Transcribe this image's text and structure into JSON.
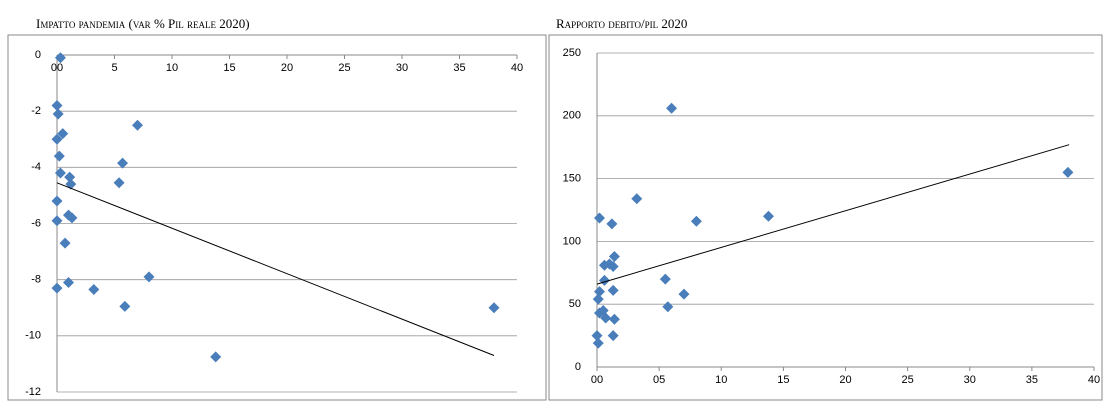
{
  "chart_data": [
    {
      "type": "scatter",
      "title": "Impatto pandemia (var % Pil reale 2020)",
      "color": "#4a7ebb",
      "grid": true,
      "x_axis_position": "top",
      "xlim": [
        0,
        40
      ],
      "xticks": [
        {
          "value": 0,
          "label": "00"
        },
        5,
        10,
        15,
        20,
        25,
        30,
        35,
        40
      ],
      "ylim": [
        -12,
        0
      ],
      "yticks": [
        -12,
        -10,
        -8,
        -6,
        -4,
        -2,
        0
      ],
      "x": [
        0.3,
        0.0,
        0.1,
        0.5,
        0.0,
        0.2,
        0.3,
        1.1,
        1.2,
        7.0,
        5.7,
        5.4,
        0.0,
        0.0,
        1.0,
        1.3,
        0.7,
        0.0,
        1.0,
        3.2,
        8.0,
        5.9,
        13.8,
        38.0
      ],
      "values": [
        -0.1,
        -1.8,
        -2.1,
        -2.8,
        -3.0,
        -3.6,
        -4.2,
        -4.35,
        -4.6,
        -2.5,
        -3.85,
        -4.55,
        -5.2,
        -5.9,
        -5.7,
        -5.8,
        -6.7,
        -8.3,
        -8.1,
        -8.35,
        -7.9,
        -8.95,
        -10.75,
        -9.0
      ],
      "trendline": {
        "x": [
          0,
          38
        ],
        "y": [
          -4.55,
          -10.7
        ]
      }
    },
    {
      "type": "scatter",
      "title": "Rapporto debito/pil 2020",
      "color": "#4a7ebb",
      "grid": true,
      "x_axis_position": "bottom",
      "xlim": [
        0,
        40
      ],
      "xticks": [
        {
          "value": 0,
          "label": "00"
        },
        {
          "value": 5,
          "label": "05"
        },
        10,
        15,
        20,
        25,
        30,
        35,
        40
      ],
      "ylim": [
        0,
        250
      ],
      "yticks": [
        0,
        50,
        100,
        150,
        200,
        250
      ],
      "x": [
        0.2,
        6.0,
        3.2,
        1.2,
        8.0,
        13.8,
        37.9,
        1.0,
        0.6,
        1.4,
        1.3,
        0.6,
        0.2,
        0.1,
        1.3,
        5.5,
        7.0,
        5.7,
        0.5,
        0.2,
        0.7,
        1.4,
        0.0,
        0.1,
        1.3
      ],
      "values": [
        118.6,
        206,
        134,
        114,
        116,
        120,
        155,
        82,
        81,
        88,
        80,
        69,
        60,
        54,
        61,
        70,
        58,
        48,
        45,
        43,
        39,
        38,
        25,
        19,
        25
      ],
      "trendline": {
        "x": [
          0,
          38
        ],
        "y": [
          66,
          177
        ]
      }
    }
  ]
}
